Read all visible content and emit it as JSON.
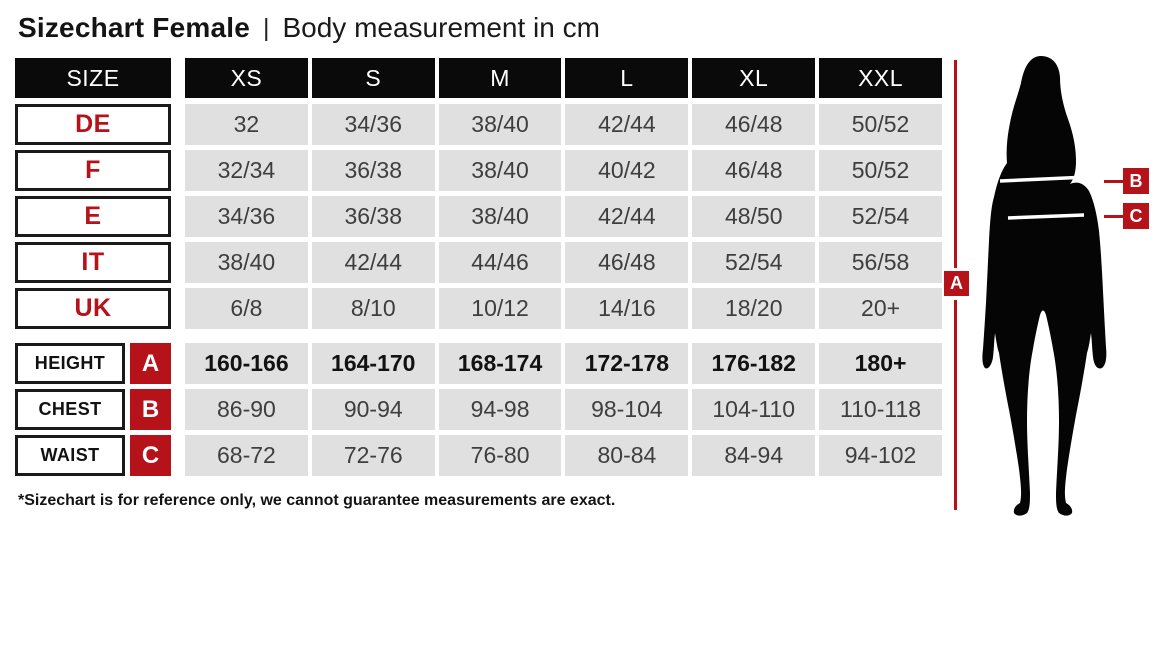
{
  "title": {
    "main": "Sizechart Female",
    "separator": "|",
    "sub": "Body measurement in cm"
  },
  "table": {
    "header": [
      "SIZE",
      "XS",
      "S",
      "M",
      "L",
      "XL",
      "XXL"
    ],
    "size_rows": [
      {
        "label": "DE",
        "values": [
          "32",
          "34/36",
          "38/40",
          "42/44",
          "46/48",
          "50/52"
        ]
      },
      {
        "label": "F",
        "values": [
          "32/34",
          "36/38",
          "38/40",
          "40/42",
          "46/48",
          "50/52"
        ]
      },
      {
        "label": "E",
        "values": [
          "34/36",
          "36/38",
          "38/40",
          "42/44",
          "48/50",
          "52/54"
        ]
      },
      {
        "label": "IT",
        "values": [
          "38/40",
          "42/44",
          "44/46",
          "46/48",
          "52/54",
          "56/58"
        ]
      },
      {
        "label": "UK",
        "values": [
          "6/8",
          "8/10",
          "10/12",
          "14/16",
          "18/20",
          "20+"
        ]
      }
    ],
    "measurement_rows": [
      {
        "label": "HEIGHT",
        "badge": "A",
        "bold": true,
        "values": [
          "160-166",
          "164-170",
          "168-174",
          "172-178",
          "176-182",
          "180+"
        ]
      },
      {
        "label": "CHEST",
        "badge": "B",
        "bold": false,
        "values": [
          "86-90",
          "90-94",
          "94-98",
          "98-104",
          "104-110",
          "110-118"
        ]
      },
      {
        "label": "WAIST",
        "badge": "C",
        "bold": false,
        "values": [
          "68-72",
          "72-76",
          "76-80",
          "80-84",
          "84-94",
          "94-102"
        ]
      }
    ]
  },
  "footnote": "*Sizechart is for reference only, we cannot guarantee measurements are exact.",
  "figure": {
    "marker_a": "A",
    "marker_b": "B",
    "marker_c": "C"
  },
  "colors": {
    "accent_red": "#b5121a",
    "header_black": "#0a0a0a",
    "cell_gray": "#e0e0e0",
    "cell_text": "#3e3e3e"
  }
}
